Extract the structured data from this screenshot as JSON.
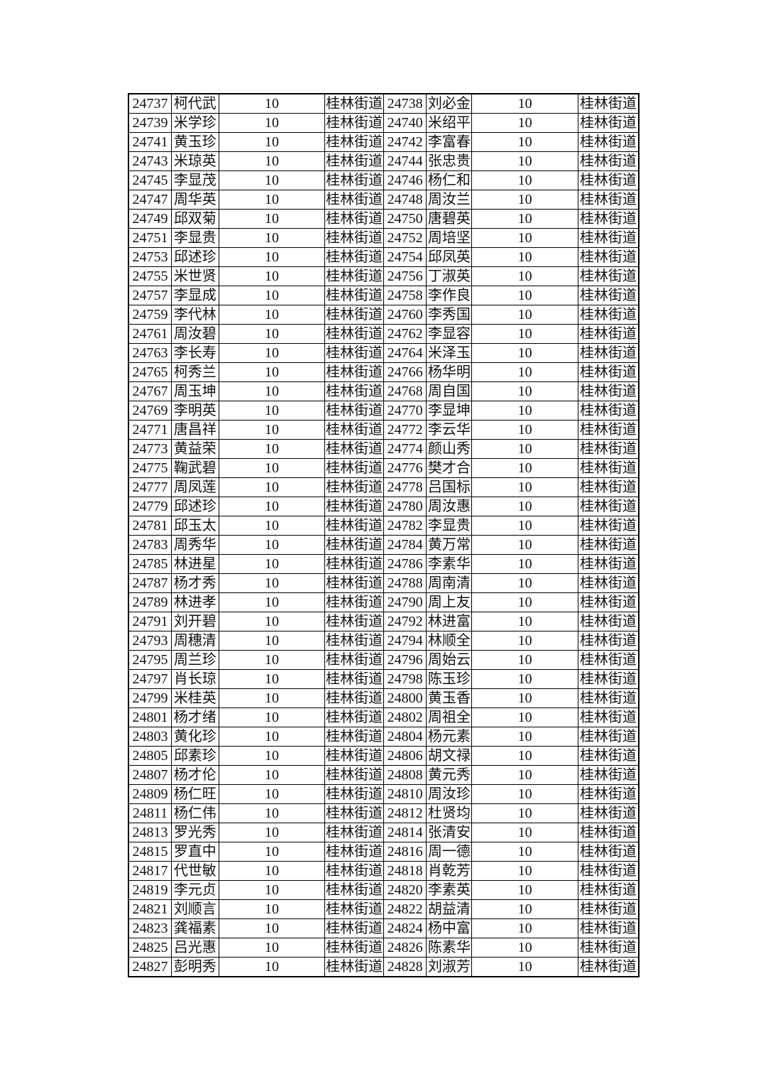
{
  "page": {
    "background": "#ffffff",
    "text_color": "#111111",
    "border_color": "#000000"
  },
  "table": {
    "column_kinds": [
      "id",
      "name",
      "value",
      "street",
      "id",
      "name",
      "value",
      "street"
    ],
    "rows": [
      [
        "24737",
        "柯代武",
        "10",
        "桂林街道",
        "24738",
        "刘必金",
        "10",
        "桂林街道"
      ],
      [
        "24739",
        "米学珍",
        "10",
        "桂林街道",
        "24740",
        "米绍平",
        "10",
        "桂林街道"
      ],
      [
        "24741",
        "黄玉珍",
        "10",
        "桂林街道",
        "24742",
        "李富春",
        "10",
        "桂林街道"
      ],
      [
        "24743",
        "米琼英",
        "10",
        "桂林街道",
        "24744",
        "张忠贵",
        "10",
        "桂林街道"
      ],
      [
        "24745",
        "李显茂",
        "10",
        "桂林街道",
        "24746",
        "杨仁和",
        "10",
        "桂林街道"
      ],
      [
        "24747",
        "周华英",
        "10",
        "桂林街道",
        "24748",
        "周汝兰",
        "10",
        "桂林街道"
      ],
      [
        "24749",
        "邱双菊",
        "10",
        "桂林街道",
        "24750",
        "唐碧英",
        "10",
        "桂林街道"
      ],
      [
        "24751",
        "李显贵",
        "10",
        "桂林街道",
        "24752",
        "周培坚",
        "10",
        "桂林街道"
      ],
      [
        "24753",
        "邱述珍",
        "10",
        "桂林街道",
        "24754",
        "邱凤英",
        "10",
        "桂林街道"
      ],
      [
        "24755",
        "米世贤",
        "10",
        "桂林街道",
        "24756",
        "丁淑英",
        "10",
        "桂林街道"
      ],
      [
        "24757",
        "李显成",
        "10",
        "桂林街道",
        "24758",
        "李作良",
        "10",
        "桂林街道"
      ],
      [
        "24759",
        "李代林",
        "10",
        "桂林街道",
        "24760",
        "李秀国",
        "10",
        "桂林街道"
      ],
      [
        "24761",
        "周汝碧",
        "10",
        "桂林街道",
        "24762",
        "李显容",
        "10",
        "桂林街道"
      ],
      [
        "24763",
        "李长寿",
        "10",
        "桂林街道",
        "24764",
        "米泽玉",
        "10",
        "桂林街道"
      ],
      [
        "24765",
        "柯秀兰",
        "10",
        "桂林街道",
        "24766",
        "杨华明",
        "10",
        "桂林街道"
      ],
      [
        "24767",
        "周玉坤",
        "10",
        "桂林街道",
        "24768",
        "周自国",
        "10",
        "桂林街道"
      ],
      [
        "24769",
        "李明英",
        "10",
        "桂林街道",
        "24770",
        "李显坤",
        "10",
        "桂林街道"
      ],
      [
        "24771",
        "唐昌祥",
        "10",
        "桂林街道",
        "24772",
        "李云华",
        "10",
        "桂林街道"
      ],
      [
        "24773",
        "黄益荣",
        "10",
        "桂林街道",
        "24774",
        "颜山秀",
        "10",
        "桂林街道"
      ],
      [
        "24775",
        "鞠武碧",
        "10",
        "桂林街道",
        "24776",
        "樊才合",
        "10",
        "桂林街道"
      ],
      [
        "24777",
        "周凤莲",
        "10",
        "桂林街道",
        "24778",
        "吕国标",
        "10",
        "桂林街道"
      ],
      [
        "24779",
        "邱述珍",
        "10",
        "桂林街道",
        "24780",
        "周汝惠",
        "10",
        "桂林街道"
      ],
      [
        "24781",
        "邱玉太",
        "10",
        "桂林街道",
        "24782",
        "李显贵",
        "10",
        "桂林街道"
      ],
      [
        "24783",
        "周秀华",
        "10",
        "桂林街道",
        "24784",
        "黄万常",
        "10",
        "桂林街道"
      ],
      [
        "24785",
        "林进星",
        "10",
        "桂林街道",
        "24786",
        "李素华",
        "10",
        "桂林街道"
      ],
      [
        "24787",
        "杨才秀",
        "10",
        "桂林街道",
        "24788",
        "周南清",
        "10",
        "桂林街道"
      ],
      [
        "24789",
        "林进孝",
        "10",
        "桂林街道",
        "24790",
        "周上友",
        "10",
        "桂林街道"
      ],
      [
        "24791",
        "刘开碧",
        "10",
        "桂林街道",
        "24792",
        "林进富",
        "10",
        "桂林街道"
      ],
      [
        "24793",
        "周穗清",
        "10",
        "桂林街道",
        "24794",
        "林顺全",
        "10",
        "桂林街道"
      ],
      [
        "24795",
        "周兰珍",
        "10",
        "桂林街道",
        "24796",
        "周始云",
        "10",
        "桂林街道"
      ],
      [
        "24797",
        "肖长琼",
        "10",
        "桂林街道",
        "24798",
        "陈玉珍",
        "10",
        "桂林街道"
      ],
      [
        "24799",
        "米桂英",
        "10",
        "桂林街道",
        "24800",
        "黄玉香",
        "10",
        "桂林街道"
      ],
      [
        "24801",
        "杨才绪",
        "10",
        "桂林街道",
        "24802",
        "周祖全",
        "10",
        "桂林街道"
      ],
      [
        "24803",
        "黄化珍",
        "10",
        "桂林街道",
        "24804",
        "杨元素",
        "10",
        "桂林街道"
      ],
      [
        "24805",
        "邱素珍",
        "10",
        "桂林街道",
        "24806",
        "胡文禄",
        "10",
        "桂林街道"
      ],
      [
        "24807",
        "杨才伦",
        "10",
        "桂林街道",
        "24808",
        "黄元秀",
        "10",
        "桂林街道"
      ],
      [
        "24809",
        "杨仁旺",
        "10",
        "桂林街道",
        "24810",
        "周汝珍",
        "10",
        "桂林街道"
      ],
      [
        "24811",
        "杨仁伟",
        "10",
        "桂林街道",
        "24812",
        "杜贤均",
        "10",
        "桂林街道"
      ],
      [
        "24813",
        "罗光秀",
        "10",
        "桂林街道",
        "24814",
        "张清安",
        "10",
        "桂林街道"
      ],
      [
        "24815",
        "罗直中",
        "10",
        "桂林街道",
        "24816",
        "周一德",
        "10",
        "桂林街道"
      ],
      [
        "24817",
        "代世敏",
        "10",
        "桂林街道",
        "24818",
        "肖乾芳",
        "10",
        "桂林街道"
      ],
      [
        "24819",
        "李元贞",
        "10",
        "桂林街道",
        "24820",
        "李素英",
        "10",
        "桂林街道"
      ],
      [
        "24821",
        "刘顺言",
        "10",
        "桂林街道",
        "24822",
        "胡益清",
        "10",
        "桂林街道"
      ],
      [
        "24823",
        "龚福素",
        "10",
        "桂林街道",
        "24824",
        "杨中富",
        "10",
        "桂林街道"
      ],
      [
        "24825",
        "吕光惠",
        "10",
        "桂林街道",
        "24826",
        "陈素华",
        "10",
        "桂林街道"
      ],
      [
        "24827",
        "彭明秀",
        "10",
        "桂林街道",
        "24828",
        "刘淑芳",
        "10",
        "桂林街道"
      ]
    ]
  }
}
